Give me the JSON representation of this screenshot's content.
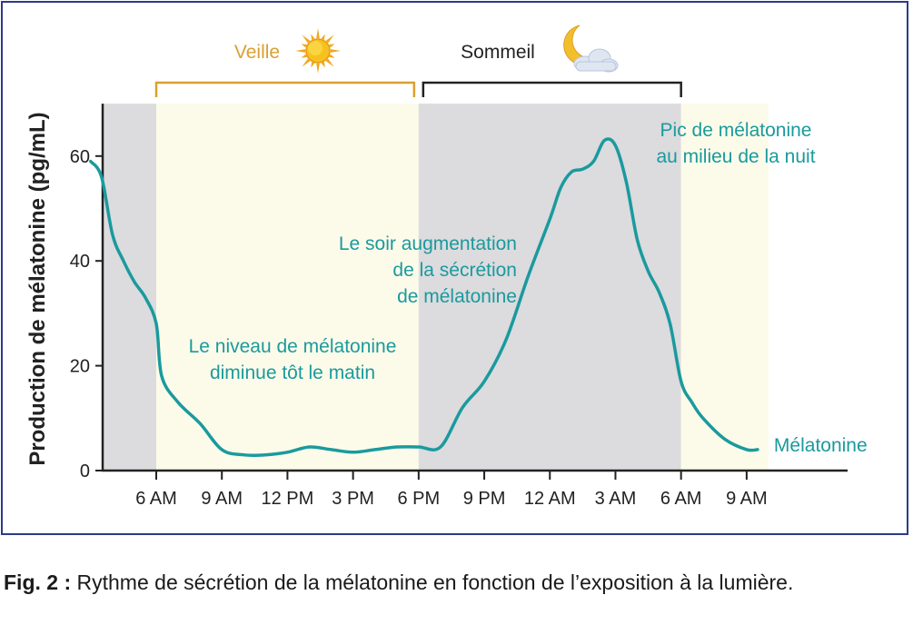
{
  "chart_data": {
    "type": "line",
    "ylabel": "Production de mélatonine (pg/mL)",
    "ylim": [
      0,
      70
    ],
    "yticks": [
      0,
      20,
      40,
      60
    ],
    "xticks": [
      "6 AM",
      "9 AM",
      "12 PM",
      "3 PM",
      "6 PM",
      "9 PM",
      "12 AM",
      "3 AM",
      "6 AM",
      "9 AM"
    ],
    "grid": false,
    "legend": "right",
    "periods": [
      {
        "label": "Veille",
        "icon": "sun-icon",
        "color": "#d9a032",
        "from_tick": 0,
        "to_tick": 4
      },
      {
        "label": "Sommeil",
        "icon": "moon-cloud-icon",
        "color": "#222222",
        "from_tick": 4,
        "to_tick": 8
      }
    ],
    "shading": [
      {
        "from_hour": 3,
        "to_hour": 6,
        "color": "#dcdbdd"
      },
      {
        "from_hour": 6,
        "to_hour": 18,
        "color": "#fcfbe9"
      },
      {
        "from_hour": 18,
        "to_hour": 30,
        "color": "#dcdbdd"
      },
      {
        "from_hour": 30,
        "to_hour": 34,
        "color": "#fcfbe9"
      }
    ],
    "series": [
      {
        "name": "Mélatonine",
        "color": "#1a9a9e",
        "hours": [
          3,
          3.5,
          4,
          4.5,
          5,
          5.5,
          6,
          6.25,
          7,
          8,
          9,
          10,
          11,
          12,
          13,
          14,
          15,
          16,
          17,
          18,
          19,
          20,
          21,
          22,
          23,
          24,
          24.5,
          25,
          25.5,
          26,
          26.5,
          27,
          27.5,
          28,
          28.5,
          29,
          29.5,
          30,
          30.5,
          31,
          32,
          33,
          33.5
        ],
        "values": [
          59,
          56,
          45,
          40,
          36,
          33,
          28,
          18,
          13,
          9,
          4,
          3,
          3,
          3.5,
          4.5,
          4,
          3.5,
          4,
          4.5,
          4.5,
          4.5,
          12,
          17,
          25,
          37,
          48,
          54,
          57,
          57.5,
          59,
          63,
          62,
          55,
          44,
          38,
          34,
          28,
          17,
          13,
          10,
          6,
          4,
          4
        ]
      }
    ],
    "annotations": [
      {
        "id": "morning",
        "lines": [
          "Le niveau de mélatonine",
          "diminue tôt le matin"
        ]
      },
      {
        "id": "evening",
        "lines": [
          "Le soir augmentation",
          "de la sécrétion",
          "de mélatonine"
        ]
      },
      {
        "id": "peak",
        "lines": [
          "Pic de mélatonine",
          "au milieu de la nuit"
        ]
      }
    ],
    "colors": {
      "axis": "#222222",
      "annotation": "#1a9a9e",
      "frame": "#2c3b86"
    }
  },
  "caption": {
    "label": "Fig. 2 :",
    "text": "Rythme de sécrétion de la mélatonine en fonction de l’exposition à la lumière."
  }
}
